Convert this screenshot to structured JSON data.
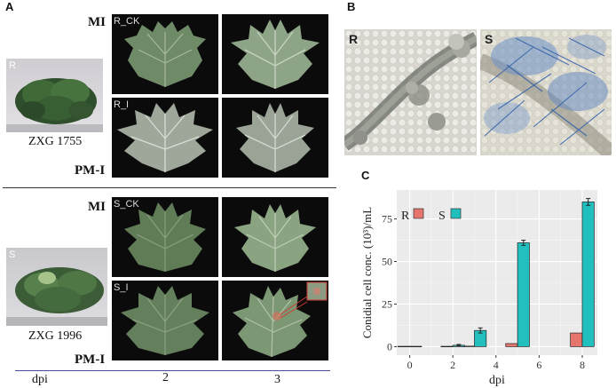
{
  "panel_a": {
    "letter": "A",
    "label_mi": "MI",
    "label_pm": "PM-I",
    "resistant": {
      "photo_label": "R",
      "name": "ZXG 1755",
      "leaf_ck": "R_CK",
      "leaf_i": "R_I"
    },
    "susceptible": {
      "photo_label": "S",
      "name": "ZXG 1996",
      "leaf_ck": "S_CK",
      "leaf_i": "S_I"
    },
    "dpi_label": "dpi",
    "dpi_values": [
      "2",
      "3"
    ]
  },
  "panel_b": {
    "letter": "B",
    "left_label": "R",
    "right_label": "S"
  },
  "panel_c": {
    "letter": "C",
    "chart_data": {
      "type": "bar",
      "xlabel": "dpi",
      "ylabel": "Conidial cell conc. (10³)/mL",
      "x_ticks": [
        0,
        2,
        4,
        6,
        8
      ],
      "y_ticks": [
        0,
        25,
        50,
        75
      ],
      "xlim": [
        -0.6,
        8.7
      ],
      "ylim": [
        -5,
        92
      ],
      "legend_position": "top-left",
      "grid": true,
      "categories": [
        0,
        2,
        3,
        5,
        8
      ],
      "series": [
        {
          "name": "R",
          "color": "#e5756d",
          "x": [
            0,
            2,
            3,
            5,
            8
          ],
          "values": [
            0.2,
            0.2,
            0.3,
            1.8,
            8.0
          ],
          "errors": [
            0,
            0,
            0,
            0,
            0
          ]
        },
        {
          "name": "S",
          "color": "#22bfbf",
          "x": [
            0,
            2,
            3,
            5,
            8
          ],
          "values": [
            0.2,
            0.8,
            9.5,
            61.0,
            85.0
          ],
          "errors": [
            0,
            0.5,
            1.5,
            1.5,
            2.0
          ]
        }
      ]
    }
  }
}
